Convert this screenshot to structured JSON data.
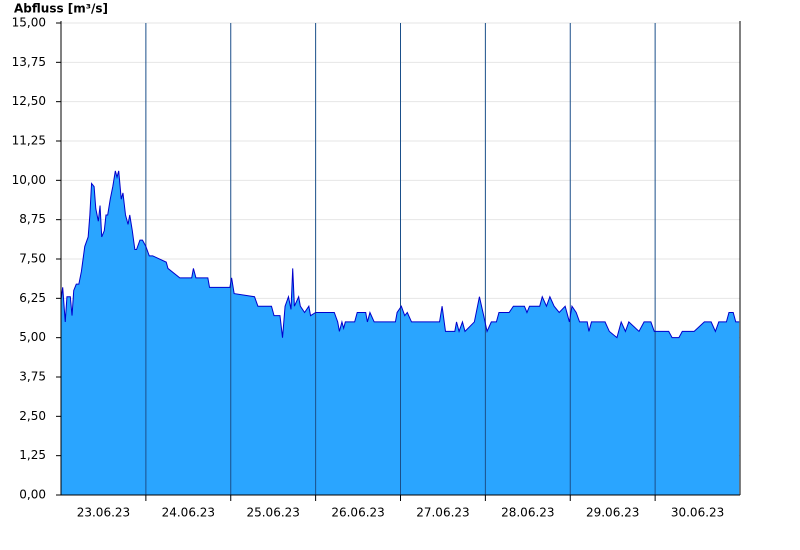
{
  "chart_data": {
    "type": "area",
    "y_label": "Abfluss [m³/s]",
    "x": [
      0,
      0.02,
      0.05,
      0.07,
      0.11,
      0.13,
      0.15,
      0.18,
      0.21,
      0.24,
      0.26,
      0.28,
      0.32,
      0.34,
      0.36,
      0.39,
      0.41,
      0.44,
      0.46,
      0.48,
      0.51,
      0.53,
      0.55,
      0.58,
      0.61,
      0.64,
      0.66,
      0.68,
      0.71,
      0.73,
      0.76,
      0.79,
      0.81,
      0.84,
      0.87,
      0.89,
      0.93,
      0.96,
      1.0,
      1.04,
      1.08,
      1.24,
      1.26,
      1.4,
      1.54,
      1.56,
      1.59,
      1.73,
      1.75,
      1.87,
      1.99,
      2.01,
      2.04,
      2.28,
      2.32,
      2.48,
      2.51,
      2.58,
      2.61,
      2.64,
      2.68,
      2.71,
      2.73,
      2.75,
      2.8,
      2.82,
      2.87,
      2.92,
      2.94,
      3.0,
      3.02,
      3.22,
      3.26,
      3.28,
      3.31,
      3.33,
      3.35,
      3.46,
      3.49,
      3.59,
      3.61,
      3.64,
      3.69,
      3.94,
      3.96,
      4.01,
      4.05,
      4.08,
      4.13,
      4.46,
      4.49,
      4.53,
      4.64,
      4.66,
      4.69,
      4.73,
      4.76,
      4.87,
      4.93,
      4.98,
      5.02,
      5.07,
      5.13,
      5.16,
      5.28,
      5.33,
      5.46,
      5.49,
      5.52,
      5.64,
      5.67,
      5.72,
      5.76,
      5.81,
      5.87,
      5.94,
      5.99,
      6.02,
      6.07,
      6.11,
      6.2,
      6.22,
      6.25,
      6.41,
      6.46,
      6.55,
      6.6,
      6.65,
      6.69,
      6.81,
      6.87,
      6.95,
      6.99,
      7.16,
      7.2,
      7.28,
      7.32,
      7.4,
      7.46,
      7.58,
      7.66,
      7.71,
      7.75,
      7.84,
      7.87,
      7.92,
      7.95,
      7.99
    ],
    "series": [
      {
        "color": "#2aa5ff",
        "line_color": "#0000cc",
        "values": [
          6.2,
          6.6,
          5.5,
          6.3,
          6.3,
          5.7,
          6.5,
          6.7,
          6.7,
          7.1,
          7.5,
          7.9,
          8.2,
          8.9,
          9.9,
          9.8,
          9.1,
          8.7,
          9.2,
          8.2,
          8.4,
          8.9,
          8.9,
          9.4,
          9.8,
          10.3,
          10.1,
          10.3,
          9.4,
          9.6,
          8.9,
          8.6,
          8.9,
          8.4,
          7.8,
          7.8,
          8.1,
          8.1,
          7.9,
          7.6,
          7.6,
          7.4,
          7.2,
          6.9,
          6.9,
          7.2,
          6.9,
          6.9,
          6.6,
          6.6,
          6.6,
          6.9,
          6.4,
          6.3,
          6.0,
          6.0,
          5.7,
          5.7,
          5.0,
          6.0,
          6.3,
          5.9,
          7.2,
          6.0,
          6.3,
          6.0,
          5.8,
          6.0,
          5.7,
          5.8,
          5.8,
          5.8,
          5.5,
          5.2,
          5.5,
          5.3,
          5.5,
          5.5,
          5.8,
          5.8,
          5.5,
          5.8,
          5.5,
          5.5,
          5.8,
          6.0,
          5.7,
          5.8,
          5.5,
          5.5,
          6.0,
          5.2,
          5.2,
          5.5,
          5.2,
          5.5,
          5.2,
          5.5,
          6.3,
          5.7,
          5.2,
          5.5,
          5.5,
          5.8,
          5.8,
          6.0,
          6.0,
          5.8,
          6.0,
          6.0,
          6.3,
          6.0,
          6.3,
          6.0,
          5.8,
          6.0,
          5.5,
          6.0,
          5.8,
          5.5,
          5.5,
          5.2,
          5.5,
          5.5,
          5.2,
          5.0,
          5.5,
          5.2,
          5.5,
          5.2,
          5.5,
          5.5,
          5.2,
          5.2,
          5.0,
          5.0,
          5.2,
          5.2,
          5.2,
          5.5,
          5.5,
          5.2,
          5.5,
          5.5,
          5.8,
          5.8,
          5.5,
          5.5
        ]
      }
    ],
    "xlim": [
      0,
      8
    ],
    "xticks": [
      {
        "value": 0.5,
        "label": "23.06.23"
      },
      {
        "value": 1.5,
        "label": "24.06.23"
      },
      {
        "value": 2.5,
        "label": "25.06.23"
      },
      {
        "value": 3.5,
        "label": "26.06.23"
      },
      {
        "value": 4.5,
        "label": "27.06.23"
      },
      {
        "value": 5.5,
        "label": "28.06.23"
      },
      {
        "value": 6.5,
        "label": "29.06.23"
      },
      {
        "value": 7.5,
        "label": "30.06.23"
      }
    ],
    "ylim": [
      0,
      15
    ],
    "yticks": [
      {
        "value": 0,
        "label": "0,00"
      },
      {
        "value": 1.25,
        "label": "1,25"
      },
      {
        "value": 2.5,
        "label": "2,50"
      },
      {
        "value": 3.75,
        "label": "3,75"
      },
      {
        "value": 5,
        "label": "5,00"
      },
      {
        "value": 6.25,
        "label": "6,25"
      },
      {
        "value": 7.5,
        "label": "7,50"
      },
      {
        "value": 8.75,
        "label": "8,75"
      },
      {
        "value": 10,
        "label": "10,00"
      },
      {
        "value": 11.25,
        "label": "11,25"
      },
      {
        "value": 12.5,
        "label": "12,50"
      },
      {
        "value": 13.75,
        "label": "13,75"
      },
      {
        "value": 15,
        "label": "15,00"
      }
    ],
    "grid": true
  }
}
